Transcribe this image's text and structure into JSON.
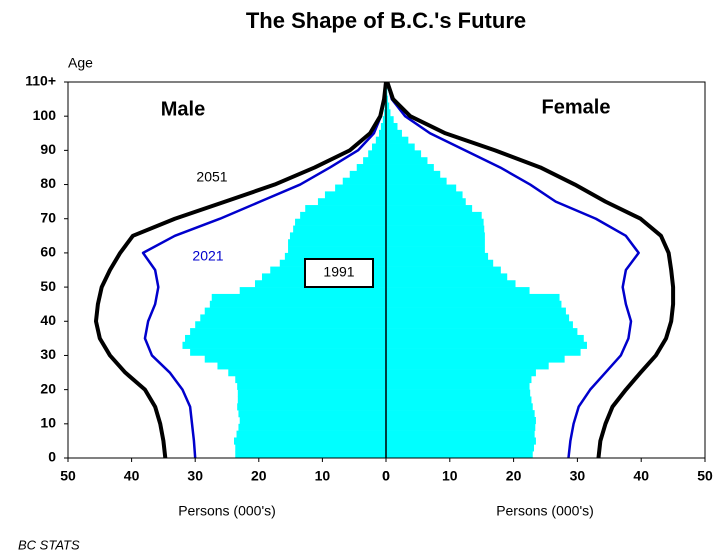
{
  "chart_data": {
    "type": "pyramid",
    "title": "The Shape of B.C.'s Future",
    "y_label": "Age",
    "source": "BC STATS",
    "ylim": [
      0,
      110
    ],
    "yticks": [
      0,
      10,
      20,
      30,
      40,
      50,
      60,
      70,
      80,
      90,
      100,
      {
        "value": 110,
        "label": "110+"
      }
    ],
    "bar_ages": [
      0,
      2,
      4,
      6,
      8,
      10,
      12,
      14,
      16,
      18,
      20,
      22,
      24,
      26,
      28,
      30,
      32,
      34,
      36,
      38,
      40,
      42,
      44,
      46,
      48,
      50,
      52,
      54,
      56,
      58,
      60,
      62,
      64,
      66,
      68,
      70,
      72,
      74,
      76,
      78,
      80,
      82,
      84,
      86,
      88,
      90,
      92,
      94,
      96,
      98,
      100,
      102,
      104,
      106,
      108,
      110
    ],
    "line_ages": [
      0,
      5,
      10,
      15,
      20,
      25,
      30,
      35,
      40,
      45,
      50,
      55,
      60,
      65,
      70,
      75,
      80,
      85,
      90,
      95,
      100,
      105,
      110
    ],
    "male": {
      "label": "Male",
      "x_label": "Persons (000's)",
      "xlim": [
        50,
        0
      ],
      "xticks": [
        50,
        40,
        30,
        20,
        10,
        0
      ],
      "series": [
        {
          "name": "1991",
          "kind": "bar",
          "color": "#00ffff",
          "values": [
            23.7,
            23.7,
            23.9,
            23.5,
            23.2,
            23,
            23.2,
            23.4,
            23.3,
            23.3,
            23.4,
            23.7,
            24.8,
            26.5,
            28.5,
            30.8,
            32,
            31.6,
            30.8,
            30,
            29.2,
            28.5,
            27.7,
            27.4,
            23,
            20.6,
            19.5,
            18.2,
            16.7,
            15.9,
            15.4,
            15.4,
            15.1,
            14.6,
            14.3,
            13.5,
            12.7,
            10.7,
            9.6,
            8,
            6.8,
            5.7,
            4.6,
            3.6,
            2.8,
            2.2,
            1.6,
            1.1,
            0.8,
            0.5,
            0.3,
            0.2,
            0.1,
            0.1,
            0,
            0
          ]
        },
        {
          "name": "2021",
          "kind": "line",
          "color": "#0000cc",
          "values": [
            30,
            30.2,
            30.5,
            30.8,
            32,
            34,
            36.8,
            37.9,
            37.4,
            36.3,
            35.8,
            36.3,
            38.2,
            33.2,
            26.1,
            19.8,
            13.5,
            8.8,
            4.4,
            1.9,
            0.8,
            0.3,
            0.1
          ]
        },
        {
          "name": "2051",
          "kind": "line",
          "color": "#000000",
          "values": [
            34.7,
            35,
            35.5,
            36.3,
            37.9,
            41,
            43.4,
            45,
            45.6,
            45.3,
            44.7,
            43.4,
            41.8,
            39.8,
            33.2,
            25.3,
            17.5,
            11.2,
            5.7,
            2.5,
            0.9,
            0.3,
            0
          ]
        }
      ]
    },
    "female": {
      "label": "Female",
      "x_label": "Persons (000's)",
      "xlim": [
        0,
        50
      ],
      "xticks": [
        0,
        10,
        20,
        30,
        40,
        50
      ],
      "series": [
        {
          "kind": "bar",
          "color": "#00ffff",
          "values": [
            23,
            23.2,
            23.5,
            23.3,
            23.4,
            23.5,
            23.3,
            23,
            22.8,
            22.6,
            22.5,
            22.8,
            23.5,
            25.5,
            28,
            30.5,
            31.5,
            31,
            30,
            29.3,
            28.7,
            28.2,
            27.5,
            27.2,
            22.5,
            20.3,
            19,
            18,
            16.8,
            16,
            15.5,
            15.5,
            15.5,
            15.4,
            15.3,
            15,
            13.5,
            12.5,
            12,
            11,
            9.5,
            8.5,
            7.5,
            6.5,
            5.5,
            4.5,
            3.5,
            2.5,
            1.8,
            1.2,
            0.7,
            0.5,
            0.3,
            0.2,
            0.1,
            0
          ]
        },
        {
          "kind": "line",
          "color": "#0000cc",
          "values": [
            28.6,
            28.9,
            29.4,
            30.2,
            32,
            34.4,
            36.8,
            38,
            38.4,
            37.6,
            37.1,
            37.6,
            39.6,
            37.6,
            32.9,
            26.6,
            22.6,
            17.9,
            12.4,
            6.9,
            3,
            0.9,
            0.2
          ]
        },
        {
          "kind": "line",
          "color": "#000000",
          "values": [
            33.3,
            33.6,
            34.4,
            35.5,
            37.6,
            39.9,
            42.3,
            43.9,
            44.7,
            45,
            45,
            44.7,
            44.3,
            43.1,
            39.9,
            34.4,
            29.6,
            24.2,
            17.1,
            9.3,
            3.8,
            1.1,
            0.2
          ]
        }
      ]
    }
  }
}
